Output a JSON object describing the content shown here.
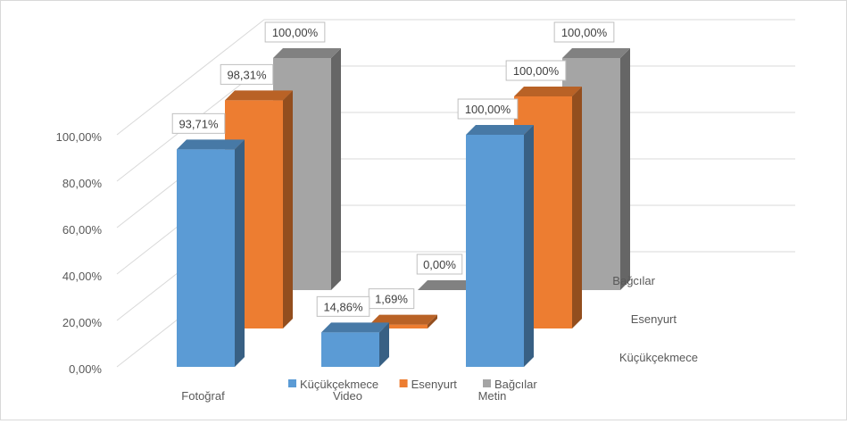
{
  "chart_data": {
    "type": "bar",
    "subtype": "3d-clustered-column",
    "title": "",
    "categories": [
      "Fotoğraf",
      "Video",
      "Metin"
    ],
    "series": [
      {
        "name": "Küçükçekmece",
        "values": [
          93.71,
          14.86,
          100.0
        ],
        "labels": [
          "93,71%",
          "14,86%",
          "100,00%"
        ],
        "color": "#5b9bd5"
      },
      {
        "name": "Esenyurt",
        "values": [
          98.31,
          1.69,
          100.0
        ],
        "labels": [
          "98,31%",
          "1,69%",
          "100,00%"
        ],
        "color": "#ed7d31"
      },
      {
        "name": "Bağcılar",
        "values": [
          100.0,
          0.0,
          100.0
        ],
        "labels": [
          "100,00%",
          "0,00%",
          "100,00%"
        ],
        "color": "#a5a5a5"
      }
    ],
    "y_ticks": [
      "0,00%",
      "20,00%",
      "40,00%",
      "60,00%",
      "80,00%",
      "100,00%"
    ],
    "ylim": [
      0,
      100
    ],
    "depth_labels": [
      "Küçükçekmece",
      "Esenyurt",
      "Bağcılar"
    ],
    "legend_position": "bottom",
    "grid": true
  }
}
